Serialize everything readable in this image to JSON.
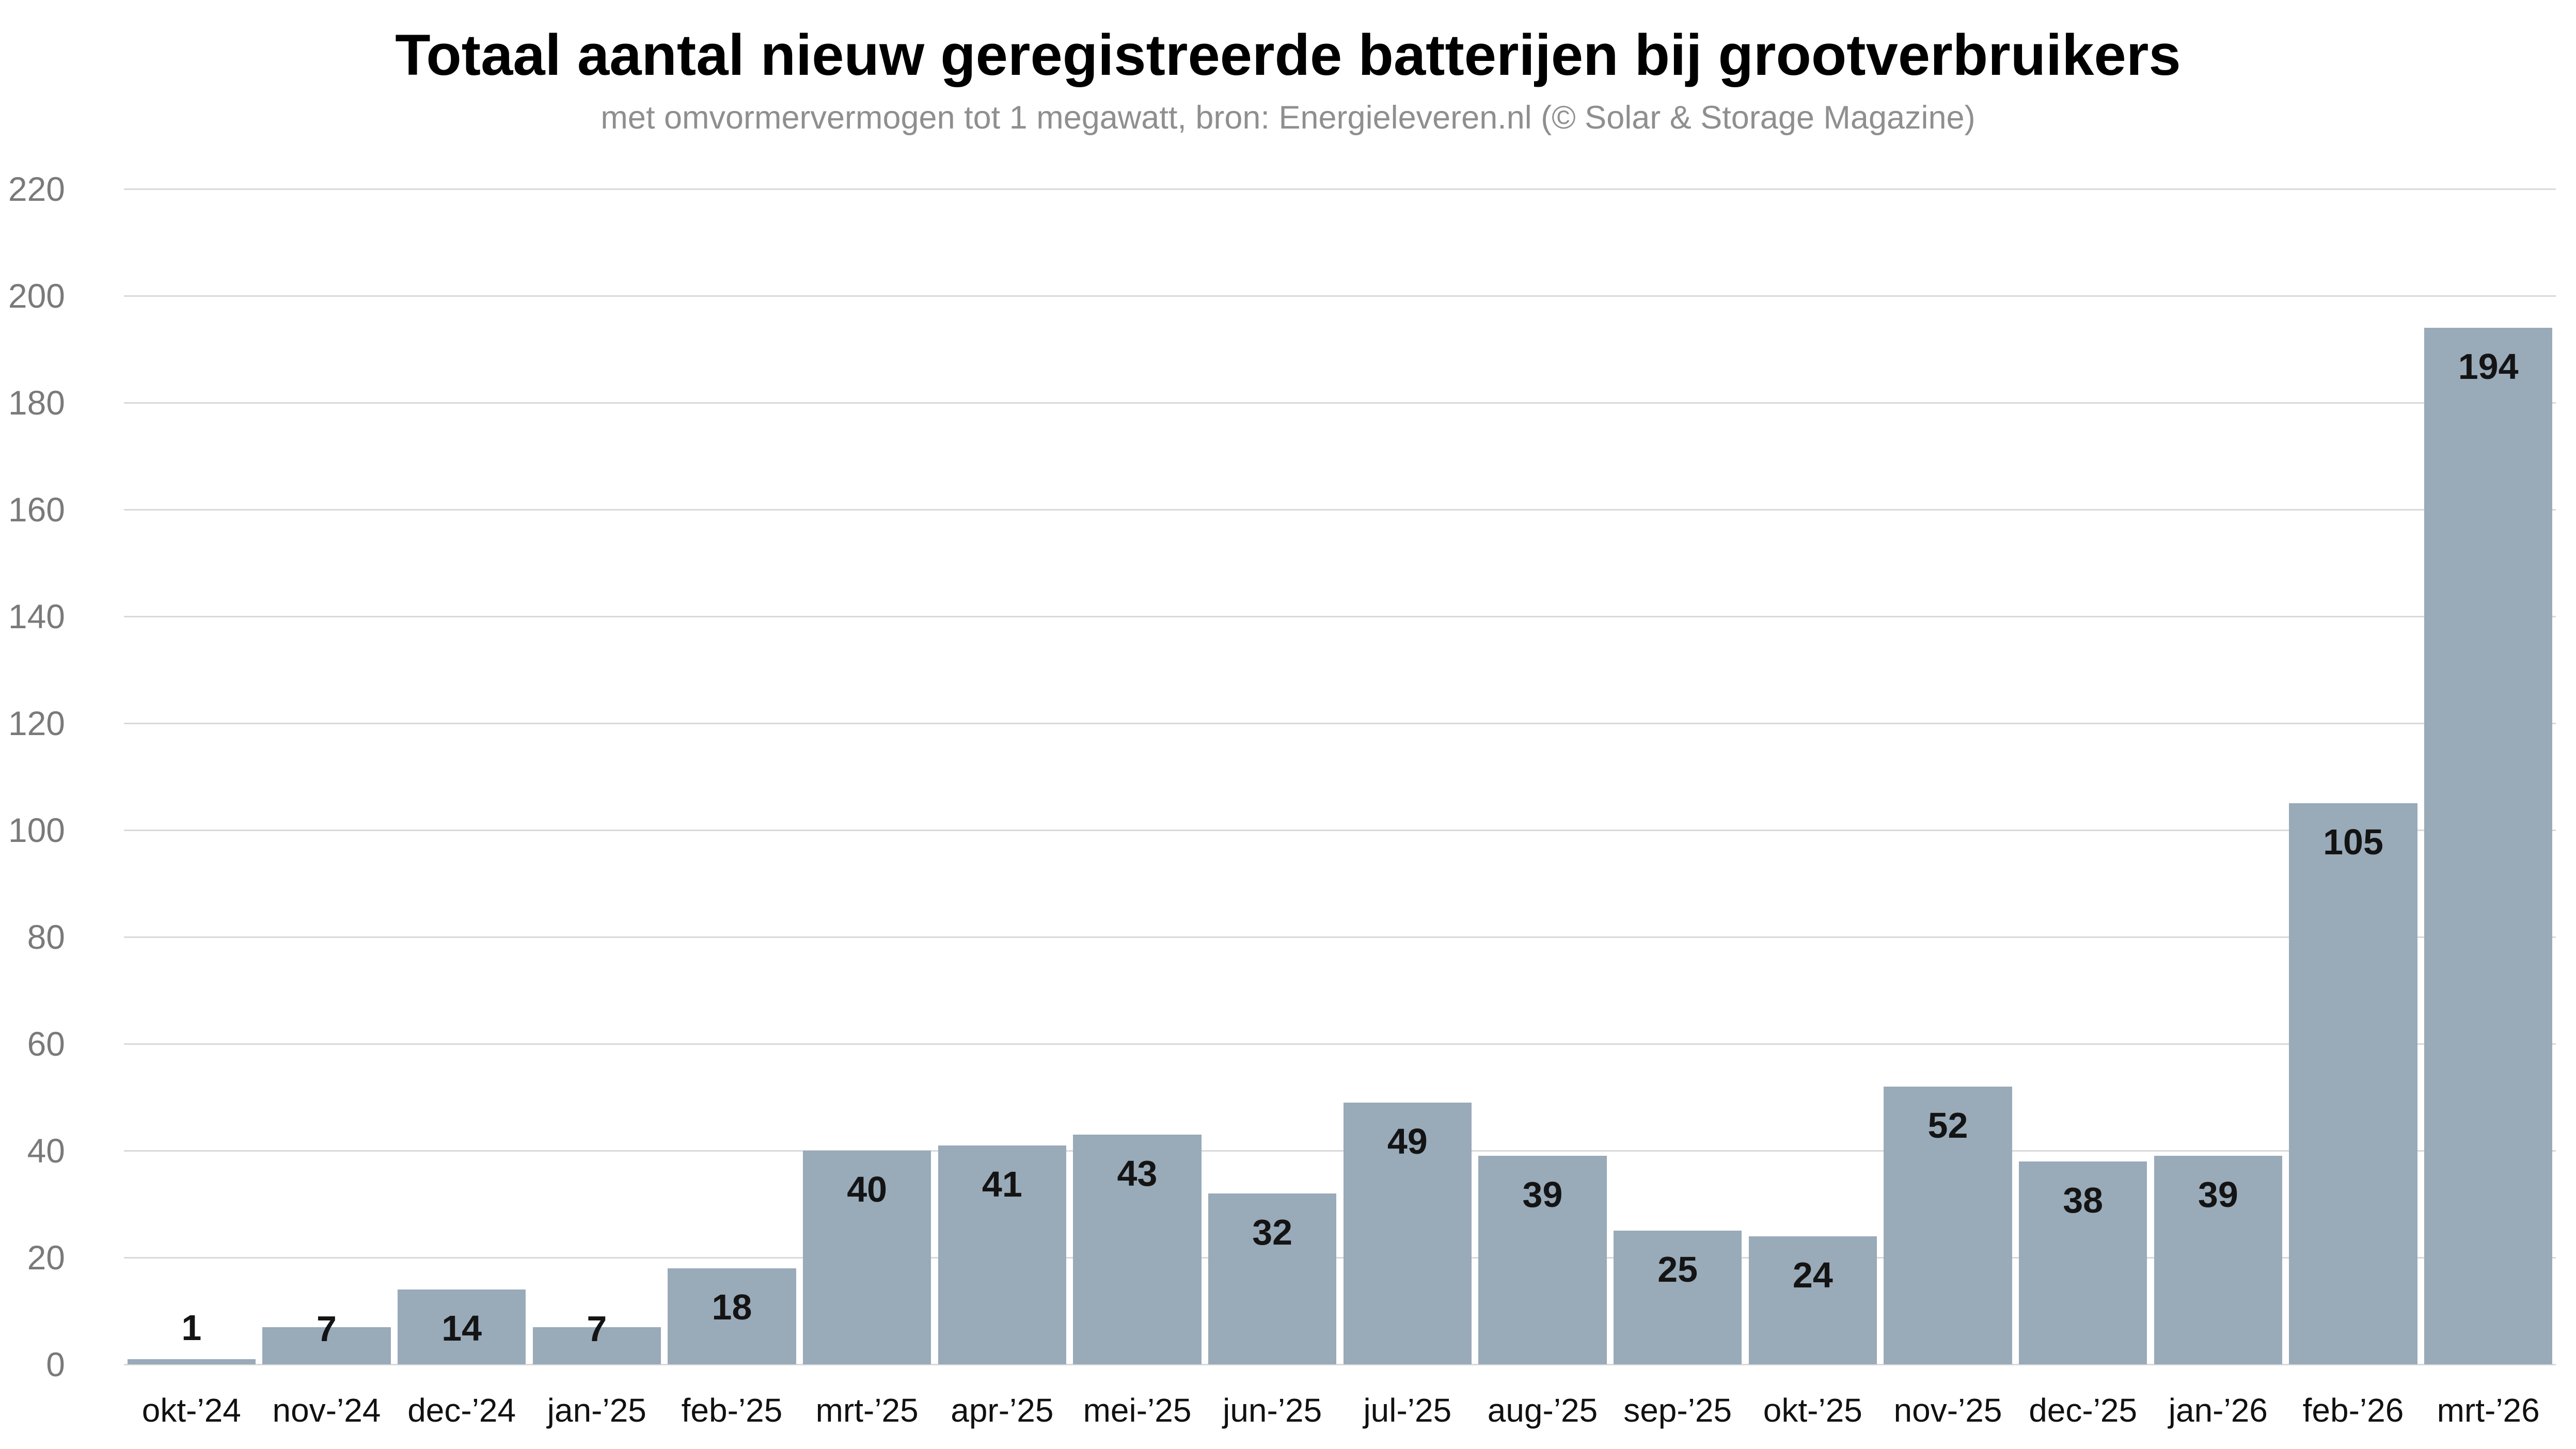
{
  "chart_data": {
    "type": "bar",
    "title": "Totaal aantal nieuw geregistreerde batterijen bij grootverbruikers",
    "subtitle": "met omvormervermogen tot 1 megawatt, bron: Energieleveren.nl (© Solar & Storage Magazine)",
    "categories": [
      "okt-’24",
      "nov-’24",
      "dec-’24",
      "jan-’25",
      "feb-’25",
      "mrt-’25",
      "apr-’25",
      "mei-’25",
      "jun-’25",
      "jul-’25",
      "aug-’25",
      "sep-’25",
      "okt-’25",
      "nov-’25",
      "dec-’25",
      "jan-’26",
      "feb-’26",
      "mrt-’26"
    ],
    "values": [
      1,
      7,
      14,
      7,
      18,
      40,
      41,
      43,
      32,
      49,
      39,
      25,
      24,
      52,
      38,
      39,
      105,
      194
    ],
    "xlabel": "",
    "ylabel": "",
    "ylim": [
      0,
      220
    ],
    "ytick_step": 20,
    "yticks": [
      0,
      20,
      40,
      60,
      80,
      100,
      120,
      140,
      160,
      180,
      200,
      220
    ],
    "grid": true,
    "legend_position": "none",
    "data_labels": true,
    "colors": {
      "bar": "#99aab9",
      "gridline": "#d9d9d9",
      "y_tick_label": "#7a7a7a",
      "x_tick_label": "#111111",
      "value_label": "#141414",
      "title": "#000000",
      "subtitle": "#8f8f8f",
      "background": "#ffffff"
    }
  }
}
